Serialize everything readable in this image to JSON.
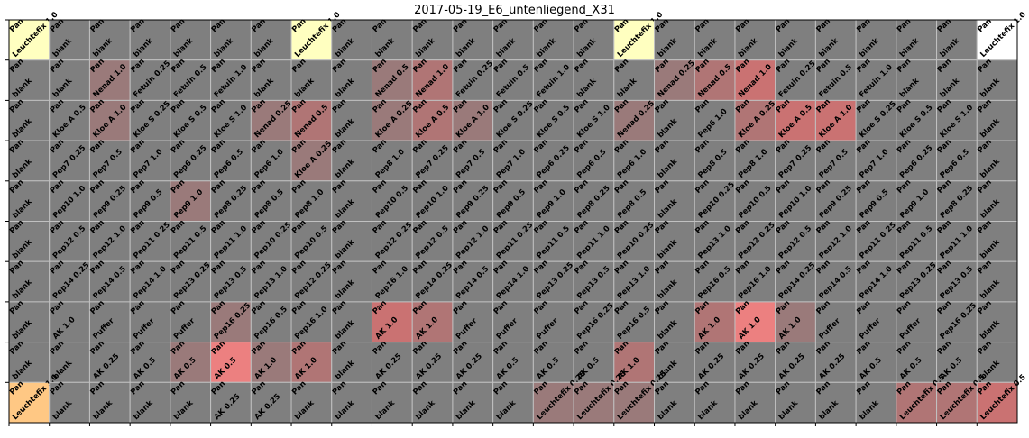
{
  "chart_data": {
    "type": "heatmap",
    "title": "2017-05-19_E6_untenliegend_X31",
    "rows": 10,
    "cols": 25,
    "colors": {
      "default": "#7f7f7f",
      "light_red": "#9a7a7a",
      "medium_red": "#b07575",
      "strong_red": "#ca7272",
      "bright_red": "#ec8080",
      "light_yellow": "#ffffc0",
      "orange": "#ffc884",
      "white": "#ffffff",
      "grid": "#c0c0c0"
    },
    "cells": [
      [
        [
          "Pan",
          "Leuchtefix 1.0",
          "light_yellow"
        ],
        [
          "Pan",
          "blank",
          ""
        ],
        [
          "Pan",
          "blank",
          ""
        ],
        [
          "Pan",
          "blank",
          ""
        ],
        [
          "Pan",
          "blank",
          ""
        ],
        [
          "Pan",
          "blank",
          ""
        ],
        [
          "Pan",
          "blank",
          ""
        ],
        [
          "Pan",
          "Leuchtefix 1.0",
          "light_yellow"
        ],
        [
          "Pan",
          "blank",
          ""
        ],
        [
          "Pan",
          "blank",
          ""
        ],
        [
          "Pan",
          "blank",
          ""
        ],
        [
          "Pan",
          "blank",
          ""
        ],
        [
          "Pan",
          "blank",
          ""
        ],
        [
          "Pan",
          "blank",
          ""
        ],
        [
          "Pan",
          "blank",
          ""
        ],
        [
          "Pan",
          "Leuchtefix 1.0",
          "light_yellow"
        ],
        [
          "Pan",
          "blank",
          ""
        ],
        [
          "Pan",
          "blank",
          ""
        ],
        [
          "Pan",
          "blank",
          ""
        ],
        [
          "Pan",
          "blank",
          ""
        ],
        [
          "Pan",
          "blank",
          ""
        ],
        [
          "Pan",
          "blank",
          ""
        ],
        [
          "Pan",
          "blank",
          ""
        ],
        [
          "Pan",
          "blank",
          ""
        ],
        [
          "Pan",
          "Leuchtefix 1.0",
          "white"
        ]
      ],
      [
        [
          "Pan",
          "blank",
          ""
        ],
        [
          "Pan",
          "blank",
          ""
        ],
        [
          "Pan",
          "Nenad 1.0",
          "light_red"
        ],
        [
          "Pan",
          "Fetuin 0.25",
          ""
        ],
        [
          "Pan",
          "Fetuin 0.5",
          ""
        ],
        [
          "Pan",
          "Fetuin 1.0",
          ""
        ],
        [
          "Pan",
          "blank",
          ""
        ],
        [
          "Pan",
          "blank",
          ""
        ],
        [
          "Pan",
          "blank",
          ""
        ],
        [
          "Pan",
          "Nenad 0.5",
          "light_red"
        ],
        [
          "Pan",
          "Nenad 1.0",
          "medium_red"
        ],
        [
          "Pan",
          "Fetuin 0.25",
          ""
        ],
        [
          "Pan",
          "Fetuin 0.5",
          ""
        ],
        [
          "Pan",
          "Fetuin 1.0",
          ""
        ],
        [
          "Pan",
          "blank",
          ""
        ],
        [
          "Pan",
          "blank",
          ""
        ],
        [
          "Pan",
          "Nenad 0.25",
          "light_red"
        ],
        [
          "Pan",
          "Nenad 0.5",
          "medium_red"
        ],
        [
          "Pan",
          "Nenad 1.0",
          "strong_red"
        ],
        [
          "Pan",
          "Fetuin 0.25",
          ""
        ],
        [
          "Pan",
          "Fetuin 0.5",
          ""
        ],
        [
          "Pan",
          "Fetuin 1.0",
          ""
        ],
        [
          "Pan",
          "blank",
          ""
        ],
        [
          "Pan",
          "blank",
          ""
        ],
        [
          "Pan",
          "blank",
          ""
        ]
      ],
      [
        [
          "Pan",
          "blank",
          ""
        ],
        [
          "Pan",
          "Kloe A 0.5",
          ""
        ],
        [
          "Pan",
          "Kloe A 1.0",
          "light_red"
        ],
        [
          "Pan",
          "Kloe S 0.25",
          ""
        ],
        [
          "Pan",
          "Kloe S 0.5",
          ""
        ],
        [
          "Pan",
          "Kloe S 1.0",
          ""
        ],
        [
          "Pan",
          "Nenad 0.25",
          "light_red"
        ],
        [
          "Pan",
          "Nenad 0.5",
          "medium_red"
        ],
        [
          "Pan",
          "blank",
          ""
        ],
        [
          "Pan",
          "Kloe A 0.25",
          "light_red"
        ],
        [
          "Pan",
          "Kloe A 0.5",
          "medium_red"
        ],
        [
          "Pan",
          "Kloe A 1.0",
          "light_red"
        ],
        [
          "Pan",
          "Kloe S 0.25",
          ""
        ],
        [
          "Pan",
          "Kloe S 0.5",
          ""
        ],
        [
          "Pan",
          "Kloe S 1.0",
          ""
        ],
        [
          "Pan",
          "Nenad 0.25",
          "light_red"
        ],
        [
          "Pan",
          "blank",
          ""
        ],
        [
          "Pan",
          "Pep6 1.0",
          ""
        ],
        [
          "Pan",
          "Kloe A 0.25",
          "medium_red"
        ],
        [
          "Pan",
          "Kloe A 0.5",
          "strong_red"
        ],
        [
          "Pan",
          "Kloe A 1.0",
          "strong_red"
        ],
        [
          "Pan",
          "Kloe S 0.25",
          ""
        ],
        [
          "Pan",
          "Kloe S 0.5",
          ""
        ],
        [
          "Pan",
          "Kloe S 1.0",
          ""
        ],
        [
          "Pan",
          "blank",
          ""
        ]
      ],
      [
        [
          "Pan",
          "blank",
          ""
        ],
        [
          "Pan",
          "Pep7 0.25",
          ""
        ],
        [
          "Pan",
          "Pep7 0.5",
          ""
        ],
        [
          "Pan",
          "Pep7 1.0",
          ""
        ],
        [
          "Pan",
          "Pep6 0.25",
          ""
        ],
        [
          "Pan",
          "Pep6 0.5",
          ""
        ],
        [
          "Pan",
          "Pep6 1.0",
          ""
        ],
        [
          "Pan",
          "Kloe A 0.25",
          "light_red"
        ],
        [
          "Pan",
          "blank",
          ""
        ],
        [
          "Pan",
          "Pep8 1.0",
          ""
        ],
        [
          "Pan",
          "Pep7 0.25",
          ""
        ],
        [
          "Pan",
          "Pep7 0.5",
          ""
        ],
        [
          "Pan",
          "Pep7 1.0",
          ""
        ],
        [
          "Pan",
          "Pep6 0.25",
          ""
        ],
        [
          "Pan",
          "Pep6 0.5",
          ""
        ],
        [
          "Pan",
          "Pep6 1.0",
          ""
        ],
        [
          "Pan",
          "blank",
          ""
        ],
        [
          "Pan",
          "Pep8 0.5",
          ""
        ],
        [
          "Pan",
          "Pep8 1.0",
          ""
        ],
        [
          "Pan",
          "Pep7 0.25",
          ""
        ],
        [
          "Pan",
          "Pep7 0.5",
          ""
        ],
        [
          "Pan",
          "Pep7 1.0",
          ""
        ],
        [
          "Pan",
          "Pep6 0.25",
          ""
        ],
        [
          "Pan",
          "Pep6 0.5",
          ""
        ],
        [
          "Pan",
          "blank",
          ""
        ]
      ],
      [
        [
          "Pan",
          "blank",
          ""
        ],
        [
          "Pan",
          "Pep10 1.0",
          ""
        ],
        [
          "Pan",
          "Pep9 0.25",
          ""
        ],
        [
          "Pan",
          "Pep9 0.5",
          ""
        ],
        [
          "Pan",
          "Pep9 1.0",
          "light_red"
        ],
        [
          "Pan",
          "Pep8 0.25",
          ""
        ],
        [
          "Pan",
          "Pep8 0.5",
          ""
        ],
        [
          "Pan",
          "Pep8 1.0",
          ""
        ],
        [
          "Pan",
          "blank",
          ""
        ],
        [
          "Pan",
          "Pep10 0.5",
          ""
        ],
        [
          "Pan",
          "Pep10 1.0",
          ""
        ],
        [
          "Pan",
          "Pep9 0.25",
          ""
        ],
        [
          "Pan",
          "Pep9 0.5",
          ""
        ],
        [
          "Pan",
          "Pep9 1.0",
          ""
        ],
        [
          "Pan",
          "Pep8 0.25",
          ""
        ],
        [
          "Pan",
          "Pep8 0.5",
          ""
        ],
        [
          "Pan",
          "blank",
          ""
        ],
        [
          "Pan",
          "Pep10 0.25",
          ""
        ],
        [
          "Pan",
          "Pep10 0.5",
          ""
        ],
        [
          "Pan",
          "Pep10 1.0",
          ""
        ],
        [
          "Pan",
          "Pep9 0.25",
          ""
        ],
        [
          "Pan",
          "Pep9 0.5",
          ""
        ],
        [
          "Pan",
          "Pep9 1.0",
          ""
        ],
        [
          "Pan",
          "Pep8 0.25",
          ""
        ],
        [
          "Pan",
          "blank",
          ""
        ]
      ],
      [
        [
          "Pan",
          "blank",
          ""
        ],
        [
          "Pan",
          "Pep12 0.5",
          ""
        ],
        [
          "Pan",
          "Pep12 1.0",
          ""
        ],
        [
          "Pan",
          "Pep11 0.25",
          ""
        ],
        [
          "Pan",
          "Pep11 0.5",
          ""
        ],
        [
          "Pan",
          "Pep11 1.0",
          ""
        ],
        [
          "Pan",
          "Pep10 0.25",
          ""
        ],
        [
          "Pan",
          "Pep10 0.5",
          ""
        ],
        [
          "Pan",
          "blank",
          ""
        ],
        [
          "Pan",
          "Pep12 0.25",
          ""
        ],
        [
          "Pan",
          "Pep12 0.5",
          ""
        ],
        [
          "Pan",
          "Pep12 1.0",
          ""
        ],
        [
          "Pan",
          "Pep11 0.25",
          ""
        ],
        [
          "Pan",
          "Pep11 0.5",
          ""
        ],
        [
          "Pan",
          "Pep11 1.0",
          ""
        ],
        [
          "Pan",
          "Pep10 0.25",
          ""
        ],
        [
          "Pan",
          "blank",
          ""
        ],
        [
          "Pan",
          "Pep13 1.0",
          ""
        ],
        [
          "Pan",
          "Pep12 0.25",
          ""
        ],
        [
          "Pan",
          "Pep12 0.5",
          ""
        ],
        [
          "Pan",
          "Pep12 1.0",
          ""
        ],
        [
          "Pan",
          "Pep11 0.25",
          ""
        ],
        [
          "Pan",
          "Pep11 0.5",
          ""
        ],
        [
          "Pan",
          "Pep11 1.0",
          ""
        ],
        [
          "Pan",
          "blank",
          ""
        ]
      ],
      [
        [
          "Pan",
          "blank",
          ""
        ],
        [
          "Pan",
          "Pep14 0.25",
          ""
        ],
        [
          "Pan",
          "Pep14 0.5",
          ""
        ],
        [
          "Pan",
          "Pep14 1.0",
          ""
        ],
        [
          "Pan",
          "Pep13 0.25",
          ""
        ],
        [
          "Pan",
          "Pep13 0.5",
          ""
        ],
        [
          "Pan",
          "Pep13 1.0",
          ""
        ],
        [
          "Pan",
          "Pep12 0.25",
          ""
        ],
        [
          "Pan",
          "blank",
          ""
        ],
        [
          "Pan",
          "Pep16 1.0",
          ""
        ],
        [
          "Pan",
          "Pep14 0.25",
          ""
        ],
        [
          "Pan",
          "Pep14 0.5",
          ""
        ],
        [
          "Pan",
          "Pep14 1.0",
          ""
        ],
        [
          "Pan",
          "Pep13 0.25",
          ""
        ],
        [
          "Pan",
          "Pep13 0.5",
          ""
        ],
        [
          "Pan",
          "Pep13 1.0",
          ""
        ],
        [
          "Pan",
          "blank",
          ""
        ],
        [
          "Pan",
          "Pep16 0.5",
          ""
        ],
        [
          "Pan",
          "Pep16 1.0",
          ""
        ],
        [
          "Pan",
          "Pep14 0.25",
          ""
        ],
        [
          "Pan",
          "Pep14 0.5",
          ""
        ],
        [
          "Pan",
          "Pep14 1.0",
          ""
        ],
        [
          "Pan",
          "Pep13 0.25",
          ""
        ],
        [
          "Pan",
          "Pep13 0.5",
          ""
        ],
        [
          "Pan",
          "blank",
          ""
        ]
      ],
      [
        [
          "Pan",
          "blank",
          ""
        ],
        [
          "Pan",
          "AK 1.0",
          ""
        ],
        [
          "Pan",
          "Puffer",
          ""
        ],
        [
          "Pan",
          "Puffer",
          ""
        ],
        [
          "Pan",
          "Puffer",
          ""
        ],
        [
          "Pan",
          "Pep16 0.25",
          "light_red"
        ],
        [
          "Pan",
          "Pep16 0.5",
          ""
        ],
        [
          "Pan",
          "Pep16 1.0",
          ""
        ],
        [
          "Pan",
          "blank",
          ""
        ],
        [
          "Pan",
          "AK 1.0",
          "strong_red"
        ],
        [
          "Pan",
          "AK 1.0",
          "medium_red"
        ],
        [
          "Pan",
          "Puffer",
          ""
        ],
        [
          "Pan",
          "Puffer",
          ""
        ],
        [
          "Pan",
          "Puffer",
          ""
        ],
        [
          "Pan",
          "Pep16 0.25",
          ""
        ],
        [
          "Pan",
          "Pep16 0.5",
          ""
        ],
        [
          "Pan",
          "blank",
          ""
        ],
        [
          "Pan",
          "AK 1.0",
          "medium_red"
        ],
        [
          "Pan",
          "AK 1.0",
          "bright_red"
        ],
        [
          "Pan",
          "AK 1.0",
          "light_red"
        ],
        [
          "Pan",
          "Puffer",
          ""
        ],
        [
          "Pan",
          "Puffer",
          ""
        ],
        [
          "Pan",
          "Puffer",
          ""
        ],
        [
          "Pan",
          "Pep16 0.25",
          ""
        ],
        [
          "Pan",
          "blank",
          ""
        ]
      ],
      [
        [
          "Pan",
          "blank",
          ""
        ],
        [
          "Pan",
          "blank",
          ""
        ],
        [
          "Pan",
          "AK 0.25",
          ""
        ],
        [
          "Pan",
          "AK 0.5",
          ""
        ],
        [
          "Pan",
          "AK 0.5",
          "light_red"
        ],
        [
          "Pan",
          "AK 0.5",
          "bright_red"
        ],
        [
          "Pan",
          "AK 1.0",
          "light_red"
        ],
        [
          "Pan",
          "AK 1.0",
          "medium_red"
        ],
        [
          "Pan",
          "blank",
          ""
        ],
        [
          "Pan",
          "AK 0.25",
          ""
        ],
        [
          "Pan",
          "AK 0.25",
          ""
        ],
        [
          "Pan",
          "AK 0.25",
          ""
        ],
        [
          "Pan",
          "AK 0.5",
          ""
        ],
        [
          "Pan",
          "AK 0.5",
          ""
        ],
        [
          "Pan",
          "AK 0.5",
          ""
        ],
        [
          "Pan",
          "AK 1.0",
          "medium_red"
        ],
        [
          "Pan",
          "blank",
          ""
        ],
        [
          "Pan",
          "AK 0.25",
          ""
        ],
        [
          "Pan",
          "AK 0.25",
          ""
        ],
        [
          "Pan",
          "AK 0.25",
          ""
        ],
        [
          "Pan",
          "AK 0.25",
          ""
        ],
        [
          "Pan",
          "AK 0.5",
          ""
        ],
        [
          "Pan",
          "AK 0.5",
          ""
        ],
        [
          "Pan",
          "AK 0.5",
          ""
        ],
        [
          "Pan",
          "blank",
          ""
        ]
      ],
      [
        [
          "Pan",
          "Leuchtefix 1.0",
          "orange"
        ],
        [
          "Pan",
          "blank",
          ""
        ],
        [
          "Pan",
          "blank",
          ""
        ],
        [
          "Pan",
          "blank",
          ""
        ],
        [
          "Pan",
          "blank",
          ""
        ],
        [
          "Pan",
          "AK 0.25",
          ""
        ],
        [
          "Pan",
          "AK 0.25",
          ""
        ],
        [
          "Pan",
          "blank",
          ""
        ],
        [
          "Pan",
          "blank",
          ""
        ],
        [
          "Pan",
          "blank",
          ""
        ],
        [
          "Pan",
          "blank",
          ""
        ],
        [
          "Pan",
          "blank",
          ""
        ],
        [
          "Pan",
          "blank",
          ""
        ],
        [
          "Pan",
          "Leuchtefix 0.25",
          "light_red"
        ],
        [
          "Pan",
          "Leuchtefix 0.25",
          "light_red"
        ],
        [
          "Pan",
          "Leuchtefix 0.25",
          "light_red"
        ],
        [
          "Pan",
          "blank",
          ""
        ],
        [
          "Pan",
          "blank",
          ""
        ],
        [
          "Pan",
          "blank",
          ""
        ],
        [
          "Pan",
          "blank",
          ""
        ],
        [
          "Pan",
          "blank",
          ""
        ],
        [
          "Pan",
          "blank",
          ""
        ],
        [
          "Pan",
          "Leuchtefix 0.5",
          "medium_red"
        ],
        [
          "Pan",
          "Leuchtefix 0.5",
          "medium_red"
        ],
        [
          "Pan",
          "Leuchtefix 0.5",
          "strong_red"
        ]
      ]
    ]
  }
}
